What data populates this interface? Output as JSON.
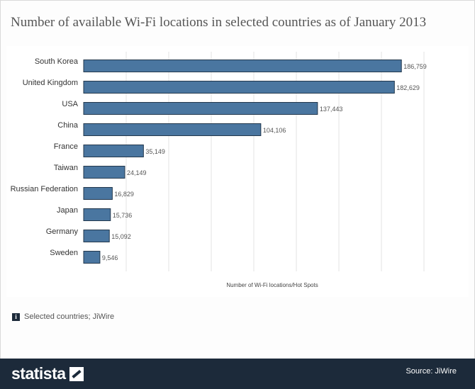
{
  "title": "Number of available Wi-Fi locations in selected countries as of January 2013",
  "chart_data": {
    "type": "bar",
    "orientation": "horizontal",
    "title": "Number of available Wi-Fi locations in selected countries as of January 2013",
    "categories": [
      "South Korea",
      "United Kingdom",
      "USA",
      "China",
      "France",
      "Taiwan",
      "Russian Federation",
      "Japan",
      "Germany",
      "Sweden"
    ],
    "values": [
      186759,
      182629,
      137443,
      104106,
      35149,
      24149,
      16829,
      15736,
      15092,
      9546
    ],
    "value_labels": [
      "186,759",
      "182,629",
      "137,443",
      "104,106",
      "35,149",
      "24,149",
      "16,829",
      "15,736",
      "15,092",
      "9,546"
    ],
    "xlabel": "Number of Wi-Fi locations/Hot Spots",
    "ylabel": "",
    "xlim": [
      0,
      225000
    ],
    "grid": true,
    "bar_color": "#4a76a0",
    "bar_border": "#23384d"
  },
  "source_note": {
    "icon": "info-icon",
    "text": "Selected countries; JiWire"
  },
  "footer": {
    "brand": "statista",
    "source": "Source: JiWire",
    "background": "#1c2a3a"
  }
}
